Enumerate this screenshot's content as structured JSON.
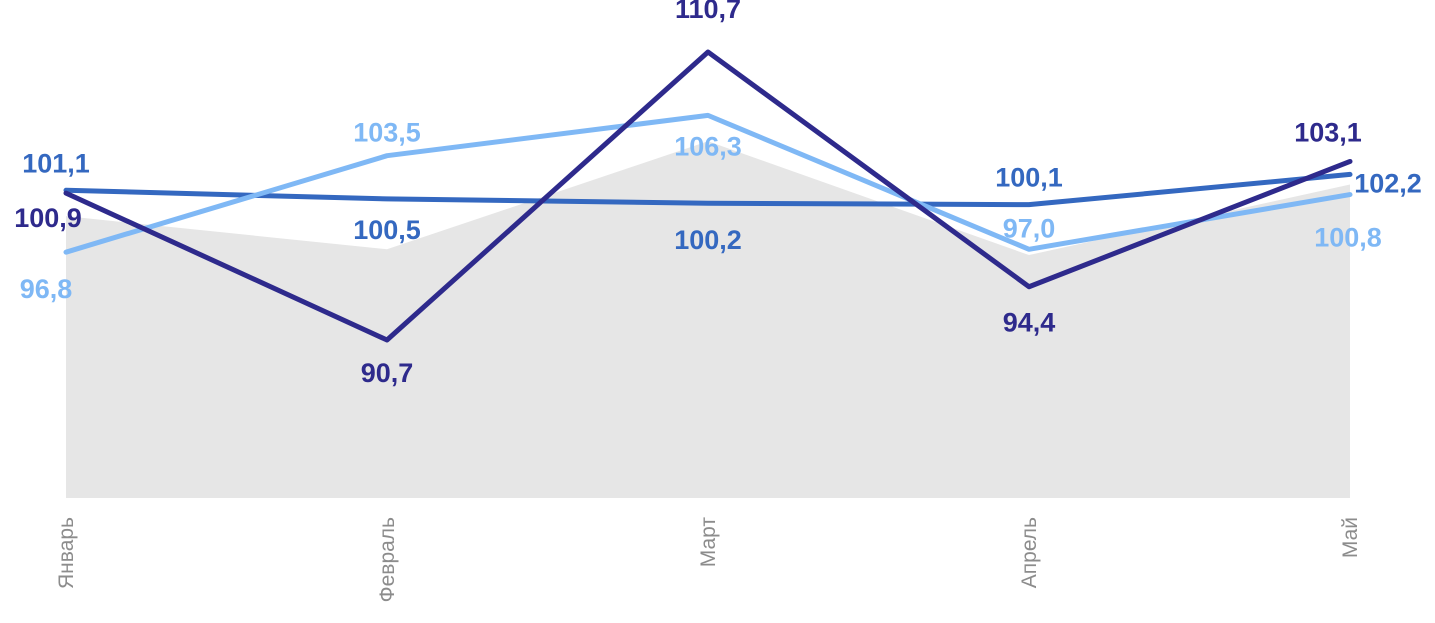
{
  "chart_data": {
    "type": "line",
    "categories": [
      "Январь",
      "Февраль",
      "Март",
      "Апрель",
      "Май"
    ],
    "area_values": [
      99.3,
      97.0,
      104.5,
      96.6,
      101.5
    ],
    "series": [
      {
        "color": "#2e2a8c",
        "values": [
          100.9,
          90.7,
          110.7,
          94.4,
          103.1
        ],
        "labels": [
          "100,9",
          "90,7",
          "110,7",
          "94,4",
          "103,1"
        ]
      },
      {
        "color": "#3468c0",
        "values": [
          101.1,
          100.5,
          100.2,
          100.1,
          102.2
        ],
        "labels": [
          "101,1",
          "100,5",
          "100,2",
          "100,1",
          "102,2"
        ]
      },
      {
        "color": "#7fb8f5",
        "values": [
          96.8,
          103.5,
          106.3,
          97.0,
          100.8
        ],
        "labels": [
          "96,8",
          "103,5",
          "106,3",
          "97,0",
          "100,8"
        ]
      }
    ],
    "area_color": "#e6e6e6",
    "ylim": [
      80,
      115
    ],
    "grid": false,
    "legend": "none"
  }
}
